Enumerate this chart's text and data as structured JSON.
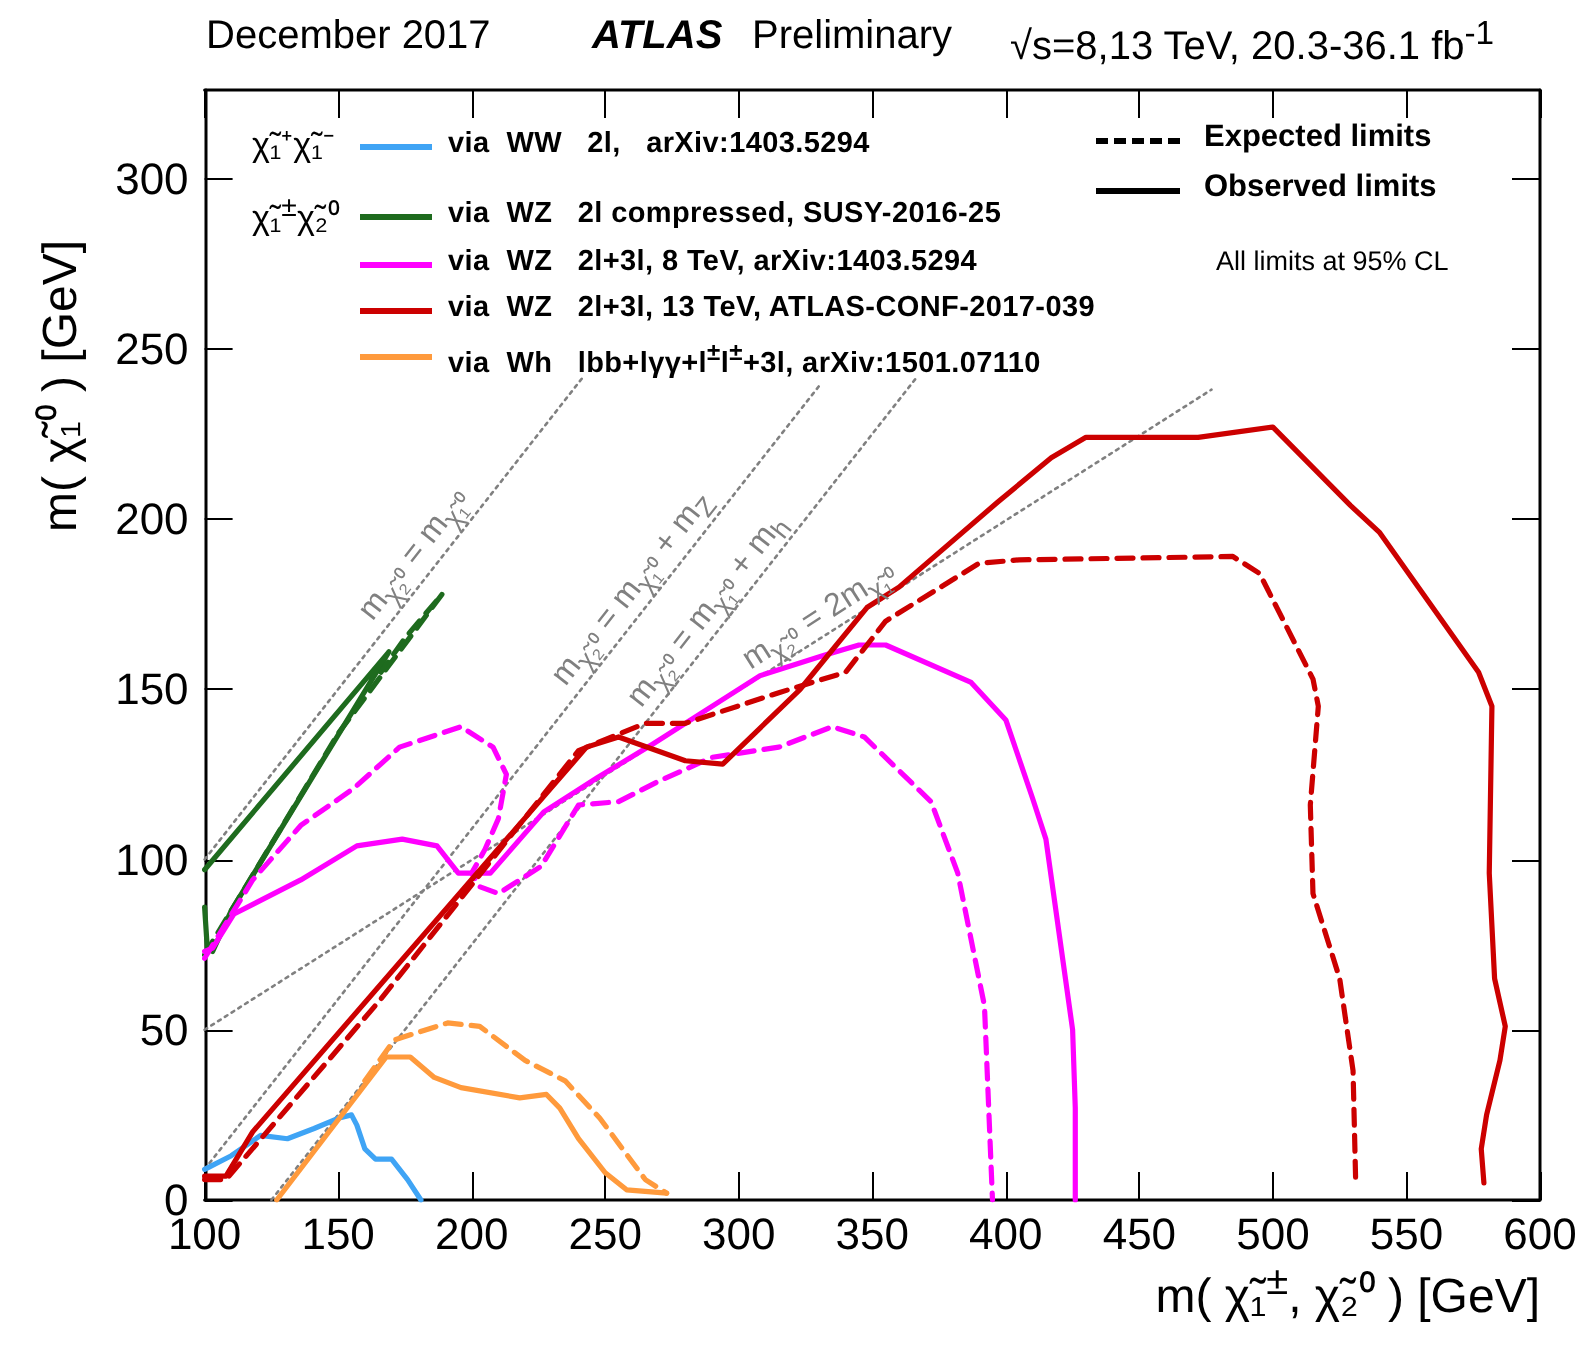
{
  "chart_data": {
    "type": "line",
    "title": "ATLAS",
    "subtitle": "Preliminary",
    "xlabel": "m( χ̃₁$^{±}$, χ̃₂⁰ ) [GeV]",
    "ylabel": "m( χ̃₁⁰ ) [GeV]",
    "annotations": [
      "December 2017",
      "√s=8,13 TeV, 20.3-36.1 fb$^{-1}$",
      "χ̃₁⁺χ̃₁⁻",
      "χ̃₁$^{±}$χ̃₂⁰",
      "Expected limits",
      "Observed limits",
      "All limits at 95% CL"
    ],
    "xlim": [
      100,
      600
    ],
    "xticks": [
      100,
      150,
      200,
      250,
      300,
      350,
      400,
      450,
      500,
      550,
      600
    ],
    "ylim": [
      0,
      326
    ],
    "yticks": [
      0,
      50,
      100,
      150,
      200,
      250,
      300
    ],
    "grid": false,
    "legend": "top left",
    "marker": "none",
    "series": [
      {
        "name": "m$_{χ̃₂⁰}$ = m$_{χ̃₁⁰}$",
        "color": "#808080",
        "line_style": "dotted",
        "x": [
          100,
          242
        ],
        "values": [
          100,
          242
        ]
      },
      {
        "name": "m$_{χ̃₂⁰}$ = m$_{χ̃₁⁰}$ + m$_{Z}$",
        "color": "#808080",
        "line_style": "dotted",
        "x": [
          100,
          331
        ],
        "values": [
          9,
          240
        ]
      },
      {
        "name": "m$_{χ̃₂⁰}$ = m$_{χ̃₁⁰}$ + m$_{h}$",
        "color": "#808080",
        "line_style": "dotted",
        "x": [
          125,
          367
        ],
        "values": [
          0,
          242
        ]
      },
      {
        "name": "m$_{χ̃₂⁰}$ = 2m$_{χ̃₁⁰}$",
        "color": "#808080",
        "line_style": "dotted",
        "x": [
          100,
          477
        ],
        "values": [
          50,
          238
        ]
      },
      {
        "name": "via  WW   2l,   arXiv:1403.5294",
        "color": "#3fa4f5",
        "line_style": "solid",
        "x": [
          100,
          110,
          121,
          131,
          141,
          150,
          155,
          157,
          160,
          164,
          170,
          176,
          181
        ],
        "values": [
          9,
          13,
          19,
          18,
          21,
          24,
          25,
          22,
          15,
          12,
          12,
          6,
          0
        ]
      },
      {
        "name": "via  WZ   2l compressed, SUSY-2016-25",
        "color": "#1e6b1e",
        "line_style": "solid",
        "x": [
          100,
          169,
          141,
          110,
          103,
          101,
          100
        ],
        "values": [
          97,
          161,
          125,
          85,
          73,
          74,
          86
        ]
      },
      {
        "color": "#1e6b1e",
        "line_style": "dashed",
        "x": [
          100,
          120,
          150,
          189,
          175,
          166
        ],
        "values": [
          72,
          98,
          137,
          178,
          165,
          155
        ]
      },
      {
        "name": "via  WZ   2l+3l, 8 TeV, arXiv:1403.5294",
        "color": "#ff00ff",
        "line_style": "solid",
        "x": [
          100,
          103,
          111,
          136,
          157,
          174,
          187,
          195,
          207,
          227,
          247,
          268,
          292,
          308,
          332,
          345,
          355,
          387,
          400,
          410,
          415,
          425,
          426,
          426
        ],
        "values": [
          73,
          74,
          84,
          94,
          104,
          106,
          104,
          96,
          96,
          114,
          124,
          134,
          146,
          154,
          160,
          163,
          163,
          152,
          141,
          118,
          106,
          50,
          27,
          0
        ]
      },
      {
        "color": "#ff00ff",
        "line_style": "dashed",
        "x": [
          100,
          118,
          136,
          156,
          173,
          196,
          208,
          213,
          210,
          205,
          200,
          203,
          210,
          226,
          240,
          255,
          270,
          290,
          315,
          335,
          347,
          372,
          382,
          392,
          395
        ],
        "values": [
          71,
          94,
          110,
          121,
          133,
          139,
          133,
          125,
          112,
          103,
          96,
          92,
          90,
          98,
          116,
          117,
          123,
          130,
          133,
          139,
          136,
          117,
          96,
          57,
          0
        ]
      },
      {
        "name": "via  WZ   2l+3l, 13 TeV, ATLAS-CONF-2017-039",
        "color": "#cc0000",
        "line_style": "solid",
        "x": [
          100,
          108,
          118,
          243,
          255,
          280,
          294,
          323,
          348,
          360,
          397,
          417,
          430,
          472,
          500,
          529,
          540,
          577,
          582,
          581,
          583,
          587,
          585,
          580,
          578,
          579
        ],
        "values": [
          7,
          7,
          20,
          133,
          136,
          129,
          128,
          150,
          174,
          180,
          205,
          218,
          224,
          224,
          227,
          204,
          196,
          155,
          145,
          96,
          65,
          51,
          41,
          25,
          15,
          5
        ]
      },
      {
        "color": "#cc0000",
        "line_style": "dashed",
        "x": [
          100,
          108,
          166,
          240,
          265,
          280,
          315,
          340,
          355,
          390,
          405,
          485,
          495,
          515,
          517,
          514,
          515,
          525,
          530,
          531
        ],
        "values": [
          6,
          6,
          59,
          132,
          140,
          140,
          149,
          155,
          170,
          187,
          188,
          189,
          184,
          153,
          145,
          116,
          90,
          65,
          38,
          5
        ]
      },
      {
        "name": "via  Wh   lbb+lγγ+l$^{±}$l$^{±}$+3l, arXiv:1501.07110",
        "color": "#ff9a3c",
        "line_style": "solid",
        "x": [
          127,
          168,
          177,
          186,
          196,
          218,
          228,
          233,
          240,
          250,
          258,
          273
        ],
        "values": [
          0,
          42,
          42,
          36,
          33,
          30,
          31,
          27,
          18,
          8,
          3,
          2
        ]
      },
      {
        "color": "#ff9a3c",
        "line_style": "dashed",
        "x": [
          160,
          171,
          191,
          203,
          220,
          235,
          248,
          265,
          273
        ],
        "values": [
          35,
          47,
          52,
          51,
          41,
          35,
          24,
          6,
          2
        ]
      }
    ]
  }
}
